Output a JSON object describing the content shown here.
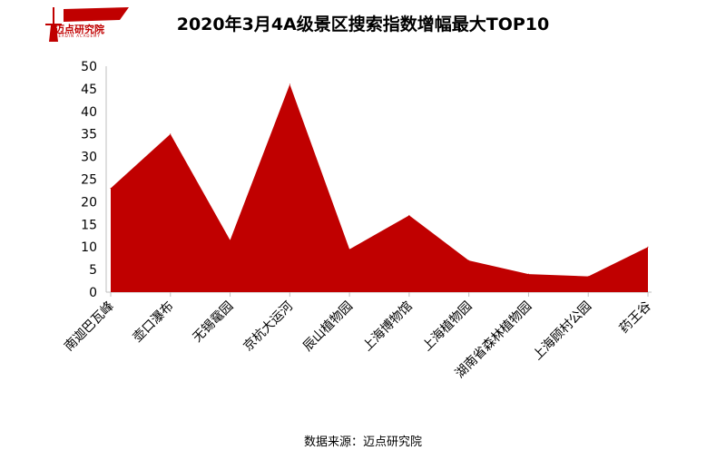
{
  "logo": {
    "text": "迈点研究院",
    "subtext": "MEADIN ACADEMY",
    "color": "#c00000"
  },
  "source": "数据来源：迈点研究院",
  "chart_data": {
    "type": "area",
    "title": "2020年3月4A级景区搜索指数增幅最大TOP10",
    "xlabel": "",
    "ylabel": "",
    "categories": [
      "南迦巴瓦峰",
      "壶口瀑布",
      "无锡鼋园",
      "京杭大运河",
      "辰山植物园",
      "上海博物馆",
      "上海植物园",
      "湖南省森林植物园",
      "上海顾村公园",
      "药王谷"
    ],
    "series": [
      {
        "values": [
          23,
          35,
          11.5,
          46,
          9.5,
          17,
          7,
          4,
          3.5,
          10
        ],
        "color": "#c00000"
      }
    ],
    "ylim": [
      0,
      50
    ],
    "yticks": [
      "0",
      "5",
      "10",
      "15",
      "20",
      "25",
      "30",
      "35",
      "40",
      "45",
      "50"
    ],
    "grid": false,
    "legend": "none"
  }
}
